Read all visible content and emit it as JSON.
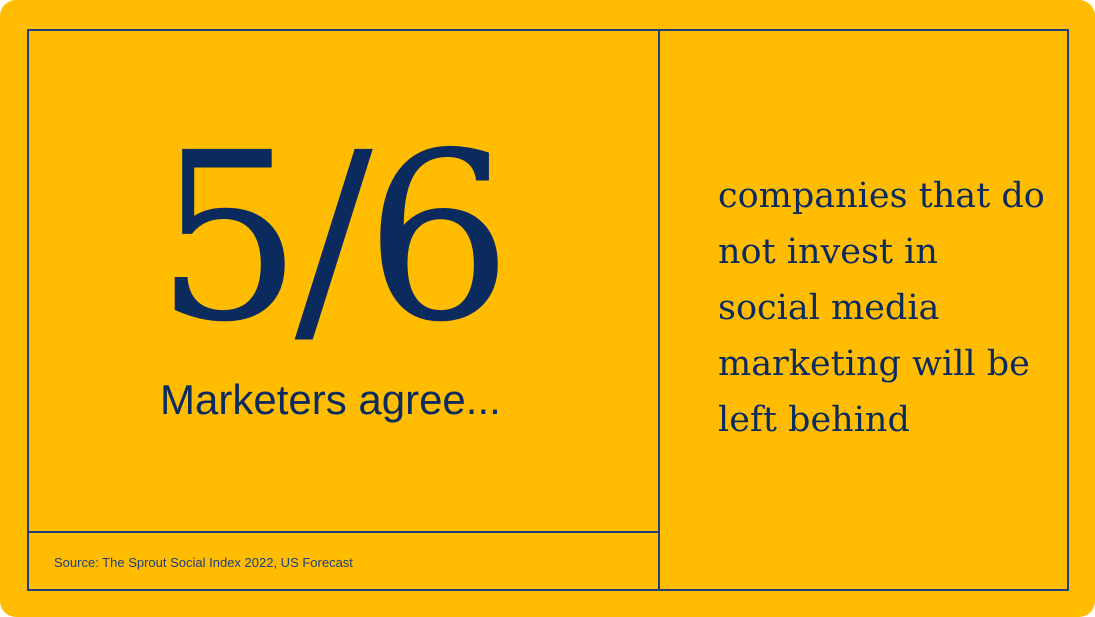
{
  "stat": {
    "value": "5/6",
    "subtitle": "Marketers agree..."
  },
  "statement": "companies that do not invest in social media marketing will be left behind",
  "source": "Source: The Sprout Social Index 2022, US Forecast",
  "colors": {
    "background": "#FFBC00",
    "text": "#0B2A5E",
    "lines": "#1D3F7A"
  }
}
